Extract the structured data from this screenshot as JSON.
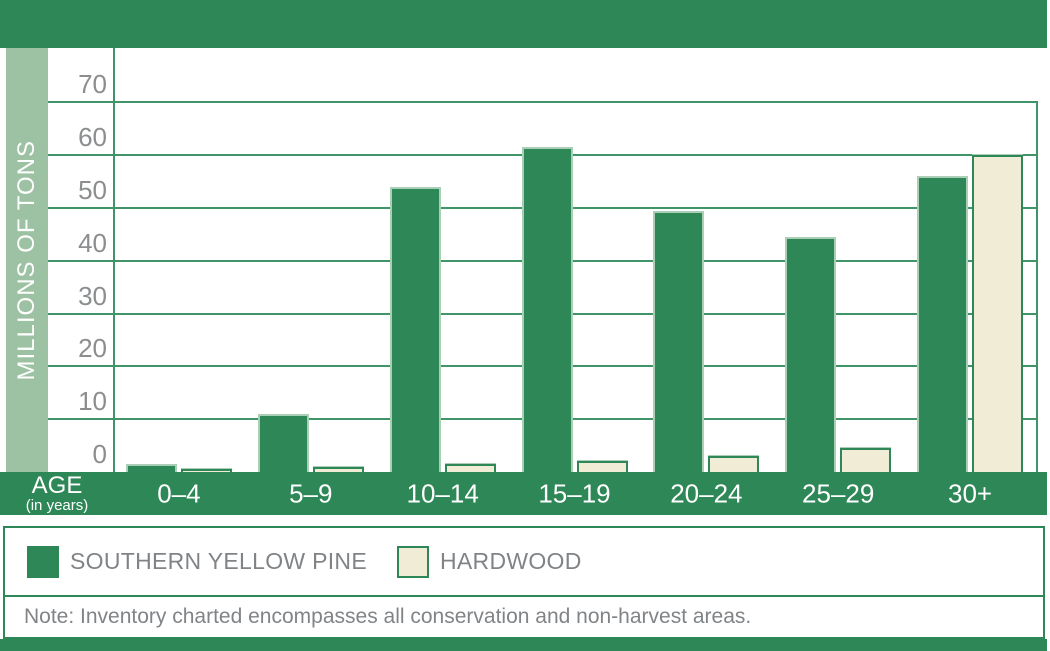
{
  "colors": {
    "green": "#2e8757",
    "light_green": "#9cc2a3",
    "cream": "#f1ecd6",
    "grid_green": "#3f9468",
    "bar_outline": "#abceb6",
    "tick_gray": "#8b8d8f",
    "text_gray": "#818487"
  },
  "y_axis": {
    "title": "MILLIONS OF TONS"
  },
  "x_axis": {
    "label": "AGE",
    "sublabel": "(in years)"
  },
  "legend": {
    "items": [
      {
        "label": "SOUTHERN YELLOW PINE",
        "color": "#2e8757"
      },
      {
        "label": "HARDWOOD",
        "color": "#f1ecd6"
      }
    ]
  },
  "note": {
    "text": "Note: Inventory charted encompasses all conservation and non-harvest areas."
  },
  "chart_data": {
    "type": "bar",
    "title": "",
    "categories": [
      "0–4",
      "5–9",
      "10–14",
      "15–19",
      "20–24",
      "25–29",
      "30+"
    ],
    "series": [
      {
        "name": "SOUTHERN YELLOW PINE",
        "color": "#2e8757",
        "values": [
          1.5,
          11,
          54,
          61.5,
          49.5,
          44.5,
          56
        ]
      },
      {
        "name": "HARDWOOD",
        "color": "#f1ecd6",
        "values": [
          0.5,
          1,
          1.5,
          2,
          3,
          4.5,
          60
        ]
      }
    ],
    "xlabel": "AGE (in years)",
    "ylabel": "MILLIONS OF TONS",
    "ylim": [
      0,
      78
    ],
    "yticks": [
      0,
      10,
      20,
      30,
      40,
      50,
      60,
      70
    ],
    "grid": true,
    "legend_position": "bottom"
  }
}
